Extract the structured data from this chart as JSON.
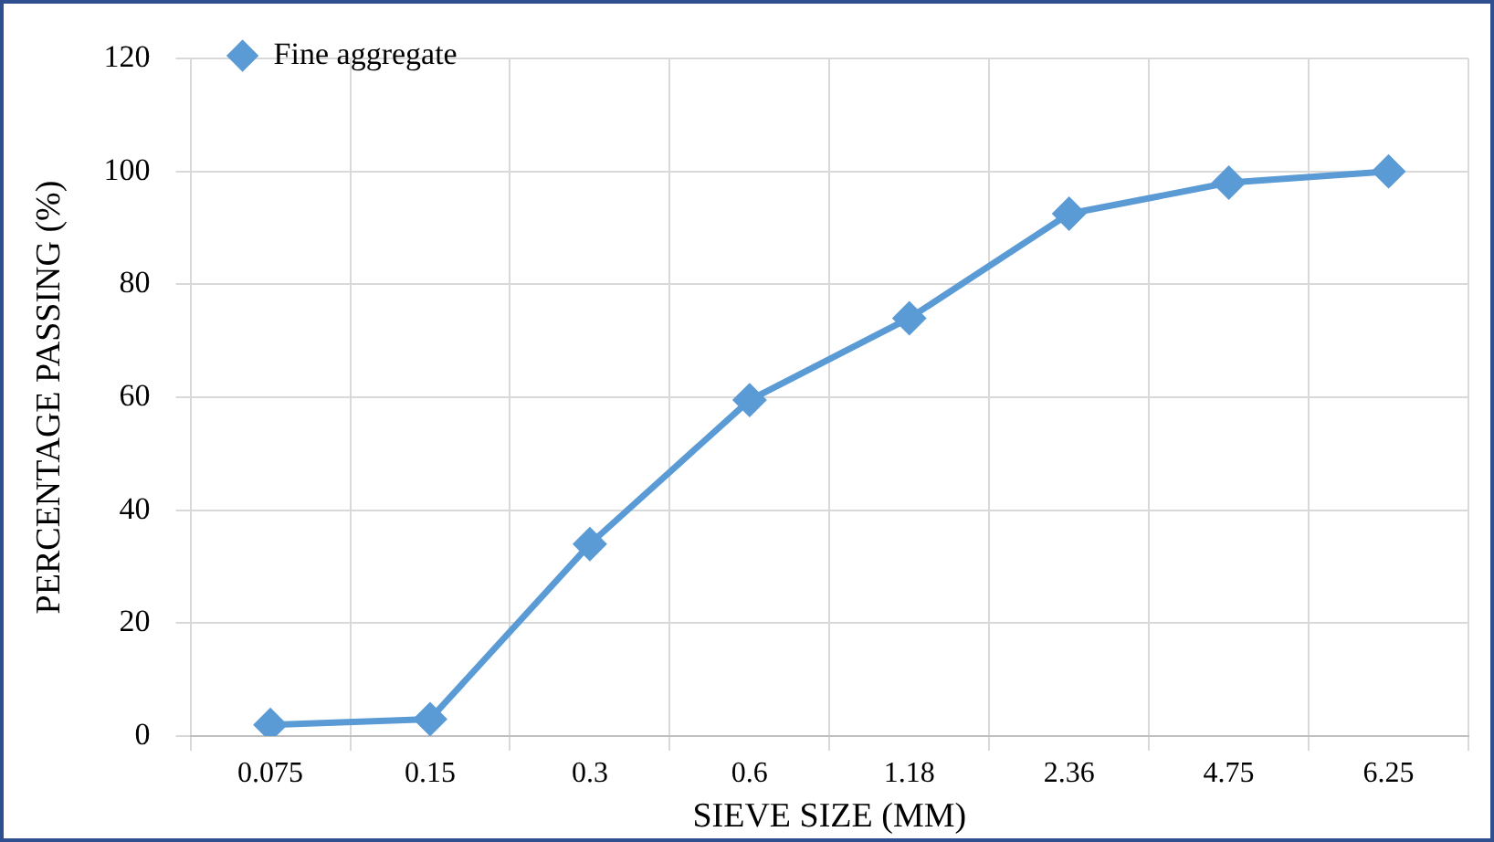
{
  "chart_data": {
    "type": "line",
    "xlabel": "SIEVE SIZE (MM)",
    "ylabel": "PERCENTAGE PASSING (%)",
    "categories": [
      "0.075",
      "0.15",
      "0.3",
      "0.6",
      "1.18",
      "2.36",
      "4.75",
      "6.25"
    ],
    "series": [
      {
        "name": "Fine aggregate",
        "color": "#5b9bd5",
        "values": [
          2,
          3,
          34,
          59.5,
          74,
          92.5,
          98,
          100
        ]
      }
    ],
    "ylim": [
      0,
      120
    ],
    "yticks": [
      0,
      20,
      40,
      60,
      80,
      100,
      120
    ],
    "grid": true,
    "legend": "top left",
    "marker": "diamond",
    "line_style": "solid"
  }
}
